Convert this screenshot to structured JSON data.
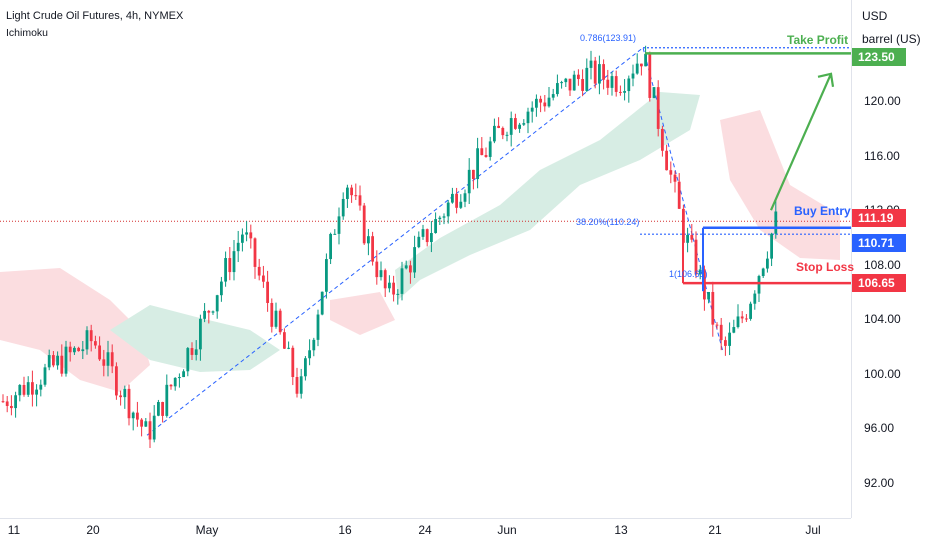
{
  "header": {
    "title": "Light Crude Oil Futures, 4h, NYMEX",
    "indicator": "Ichimoku"
  },
  "axis": {
    "unit_line1": "USD",
    "unit_line2": "barrel (US)"
  },
  "colors": {
    "up": "#089981",
    "down": "#f23645",
    "cloud_green": "#d7ede4",
    "cloud_red": "#fbdde0",
    "take_profit": "#4caf50",
    "buy_entry": "#2962ff",
    "stop_loss": "#f23645",
    "price_line": "#d32f2f"
  },
  "chart_data": {
    "type": "candlestick",
    "ylim": [
      89.5,
      128.5
    ],
    "y_ticks": [
      "92.00",
      "96.00",
      "100.00",
      "104.00",
      "108.00",
      "112.00",
      "116.00",
      "120.00"
    ],
    "x_ticks": [
      "11",
      "20",
      "May",
      "16",
      "24",
      "Jun",
      "13",
      "21",
      "Jul"
    ],
    "price_path": [
      {
        "x": "11",
        "y": 98.0
      },
      {
        "x": "20",
        "y": 102.5
      },
      {
        "x": "Apr 26",
        "y": 95.5
      },
      {
        "x": "May",
        "y": 104.5
      },
      {
        "x": "May 5",
        "y": 110.5
      },
      {
        "x": "May 11",
        "y": 98.5
      },
      {
        "x": "16",
        "y": 114.5
      },
      {
        "x": "May 18",
        "y": 105.5
      },
      {
        "x": "24",
        "y": 110.0
      },
      {
        "x": "Jun",
        "y": 118.5
      },
      {
        "x": "Jun 9",
        "y": 122.0
      },
      {
        "x": "13",
        "y": 121.5
      },
      {
        "x": "Jun 15",
        "y": 123.5
      },
      {
        "x": "Jun 19",
        "y": 110.5
      },
      {
        "x": "Jun 20",
        "y": 108.0
      },
      {
        "x": "Jun 22",
        "y": 101.6
      },
      {
        "x": "Jun 24",
        "y": 104.5
      },
      {
        "x": "Jun 27",
        "y": 111.2
      }
    ],
    "price_line": 111.19,
    "levels": [
      {
        "name": "Take Profit",
        "value": 123.5,
        "badge": "123.50"
      },
      {
        "name": "Buy Entry",
        "value": 110.71,
        "badge": "110.71"
      },
      {
        "name": "Stop Loss",
        "value": 106.65,
        "badge": "106.65"
      }
    ],
    "last_price_badge": "111.19",
    "fibonacci": [
      {
        "label": "0.786(123.91)",
        "value": 123.91
      },
      {
        "label": "38.20%(110.24)",
        "value": 110.24
      },
      {
        "label": "1(106.65)",
        "value": 106.65
      }
    ]
  }
}
